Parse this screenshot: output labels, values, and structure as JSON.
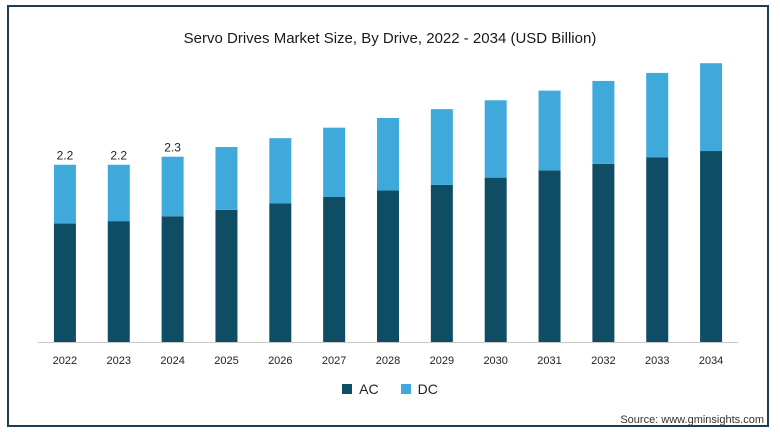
{
  "chart_data": {
    "type": "bar",
    "stacked": true,
    "title": "Servo Drives Market Size, By Drive, 2022 - 2034 (USD Billion)",
    "categories": [
      "2022",
      "2023",
      "2024",
      "2025",
      "2026",
      "2027",
      "2028",
      "2029",
      "2030",
      "2031",
      "2032",
      "2033",
      "2034"
    ],
    "series": [
      {
        "name": "AC",
        "color": "#0e4d64",
        "values": [
          1.47,
          1.5,
          1.56,
          1.64,
          1.72,
          1.8,
          1.88,
          1.95,
          2.04,
          2.13,
          2.21,
          2.29,
          2.37
        ]
      },
      {
        "name": "DC",
        "color": "#3fa9dc",
        "values": [
          0.73,
          0.7,
          0.74,
          0.78,
          0.81,
          0.86,
          0.9,
          0.94,
          0.96,
          0.99,
          1.03,
          1.05,
          1.09
        ]
      }
    ],
    "data_labels": [
      "2.2",
      "2.2",
      "2.3"
    ],
    "ylim": [
      0,
      3.5
    ],
    "grid": false,
    "legend_position": "bottom"
  },
  "source": "Source: www.gminsights.com"
}
